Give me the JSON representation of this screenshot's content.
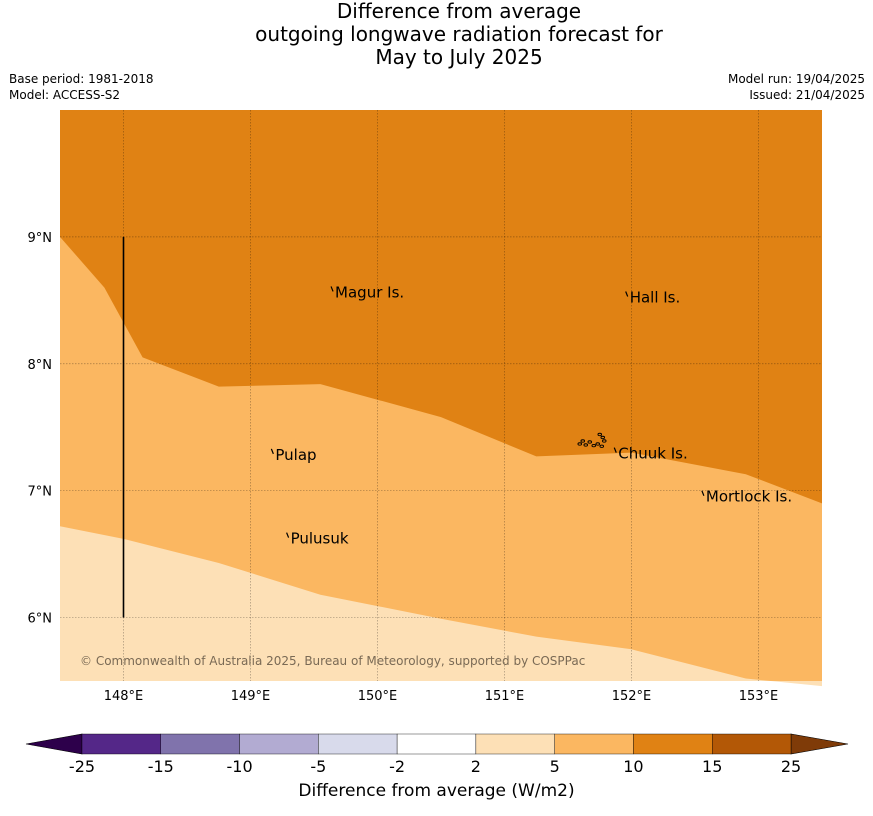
{
  "title_lines": [
    "Difference from average",
    "outgoing longwave radiation forecast for",
    "May to July 2025"
  ],
  "meta_left": [
    "Base period: 1981-2018",
    "Model: ACCESS-S2"
  ],
  "meta_right": [
    "Model run: 19/04/2025",
    "Issued: 21/04/2025"
  ],
  "map": {
    "lon_range": [
      147.5,
      153.5
    ],
    "lat_range": [
      5.5,
      10.0
    ],
    "lon_ticks": [
      {
        "value": 148,
        "label": "148°E"
      },
      {
        "value": 149,
        "label": "149°E"
      },
      {
        "value": 150,
        "label": "150°E"
      },
      {
        "value": 151,
        "label": "151°E"
      },
      {
        "value": 152,
        "label": "152°E"
      },
      {
        "value": 153,
        "label": "153°E"
      }
    ],
    "lat_ticks": [
      {
        "value": 9,
        "label": "9°N"
      },
      {
        "value": 8,
        "label": "8°N"
      },
      {
        "value": 7,
        "label": "7°N"
      },
      {
        "value": 6,
        "label": "6°N"
      }
    ],
    "colors": {
      "band_2_5": "#fde0b6",
      "band_5_10": "#fbb761",
      "band_10_15": "#e08214"
    },
    "boundary_10": [
      [
        147.5,
        9.0
      ],
      [
        147.85,
        8.6
      ],
      [
        148.15,
        8.05
      ],
      [
        148.75,
        7.82
      ],
      [
        149.55,
        7.84
      ],
      [
        150.5,
        7.58
      ],
      [
        151.25,
        7.27
      ],
      [
        152.0,
        7.3
      ],
      [
        152.9,
        7.13
      ],
      [
        153.5,
        6.9
      ]
    ],
    "boundary_5": [
      [
        147.5,
        6.72
      ],
      [
        148.0,
        6.62
      ],
      [
        148.75,
        6.43
      ],
      [
        149.55,
        6.18
      ],
      [
        150.5,
        5.99
      ],
      [
        151.25,
        5.85
      ],
      [
        152.0,
        5.75
      ],
      [
        152.9,
        5.52
      ],
      [
        153.5,
        5.46
      ]
    ],
    "meridian_line": {
      "lon": 148.0,
      "lat_from": 9.0,
      "lat_to": 6.0
    },
    "places": [
      {
        "name": "Magur Is.",
        "lon": 149.65,
        "lat": 8.57
      },
      {
        "name": "Hall Is.",
        "lon": 151.97,
        "lat": 8.53
      },
      {
        "name": "Pulap",
        "lon": 149.18,
        "lat": 7.29
      },
      {
        "name": "Chuuk Is.",
        "lon": 151.88,
        "lat": 7.3
      },
      {
        "name": "Mortlock Is.",
        "lon": 152.57,
        "lat": 6.96
      },
      {
        "name": "Pulusuk",
        "lon": 149.3,
        "lat": 6.63
      }
    ],
    "copyright": "© Commonwealth of Australia 2025, Bureau of Meteorology, supported by COSPPac"
  },
  "colorbar": {
    "label": "Difference from average (W/m2)",
    "ticks": [
      "-25",
      "-15",
      "-10",
      "-5",
      "-2",
      "2",
      "5",
      "10",
      "15",
      "25"
    ],
    "colors": [
      "#542788",
      "#8073ac",
      "#b2abd2",
      "#d8daeb",
      "#ffffff",
      "#fde0b6",
      "#fbb761",
      "#e08214",
      "#b35806"
    ],
    "extend_low_color": "#2d004b",
    "extend_high_color": "#7f3b08"
  }
}
